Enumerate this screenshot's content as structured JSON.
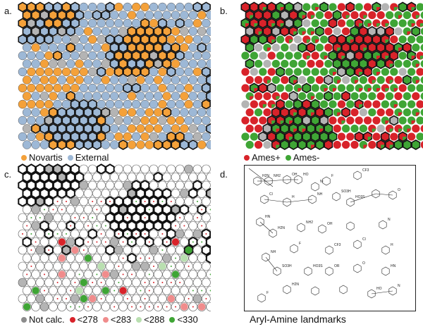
{
  "panels": {
    "a": {
      "letter": "a.",
      "legend": [
        {
          "label": "Novartis",
          "color": "#F4A13A"
        },
        {
          "label": "External",
          "color": "#9DB8D6"
        }
      ]
    },
    "b": {
      "letter": "b.",
      "legend": [
        {
          "label": "Ames+",
          "color": "#D8232A"
        },
        {
          "label": "Ames-",
          "color": "#3FA535"
        }
      ]
    },
    "c": {
      "letter": "c.",
      "legend": [
        {
          "label": "Not calc.",
          "color": "#8C8C8C"
        },
        {
          "label": "<278",
          "color": "#D8232A"
        },
        {
          "label": "<283",
          "color": "#F08C8C"
        },
        {
          "label": "<288",
          "color": "#B9DFB0"
        },
        {
          "label": "<330",
          "color": "#3FA535"
        }
      ]
    },
    "d": {
      "letter": "d.",
      "caption": "Aryl-Amine landmarks",
      "substituent_labels": [
        "H2N",
        "NH2",
        "OH",
        "HO",
        "N",
        "F",
        "CF3",
        "Cl",
        "H",
        "NH",
        "SO3H",
        "HO3S",
        "OR",
        "O",
        "HN"
      ]
    }
  },
  "colors": {
    "novartis": "#F4A13A",
    "external": "#9DB8D6",
    "ames_pos": "#D8232A",
    "ames_neg": "#3FA535",
    "grey": "#B4B4B4",
    "pink": "#F08C8C",
    "lightgreen": "#B9DFB0"
  }
}
